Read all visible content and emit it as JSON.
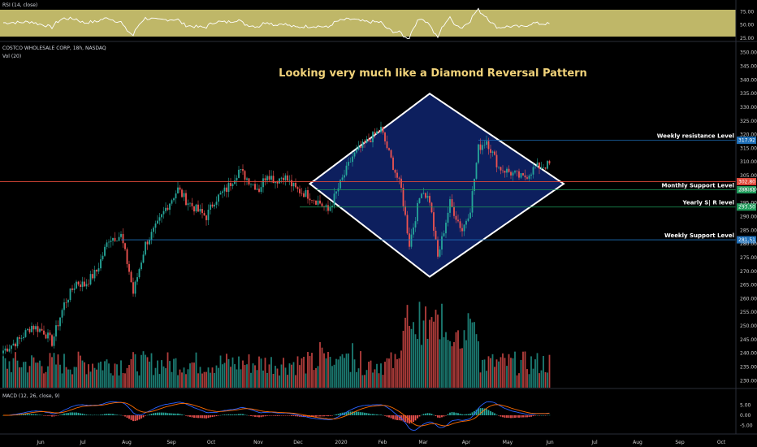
{
  "chart_data": {
    "type": "candlestick",
    "symbol": "COSTCO WHOLESALE CORP, 18h, NASDAQ",
    "annotation_title": "Looking very much like a Diamond Reversal Pattern",
    "x_labels": [
      "Jun",
      "Jul",
      "Aug",
      "Sep",
      "Oct",
      "Nov",
      "Dec",
      "2020",
      "Feb",
      "Mar",
      "Apr",
      "May",
      "Jun",
      "Jul",
      "Aug",
      "Sep",
      "Oct"
    ],
    "price_axis": {
      "ticks": [
        230,
        235,
        240,
        245,
        250,
        255,
        260,
        265,
        270,
        275,
        280,
        285,
        290,
        295,
        300,
        305,
        310,
        315,
        320,
        325,
        330,
        335,
        340,
        345,
        350
      ],
      "tick_labels": [
        "230.00",
        "235.00",
        "240.00",
        "245.00",
        "250.00",
        "255.00",
        "260.00",
        "265.00",
        "270.00",
        "275.00",
        "280.00",
        "285.00",
        "290.00",
        "295.00",
        "300.00",
        "305.00",
        "310.00",
        "315.00",
        "320.00",
        "325.00",
        "330.00",
        "335.00",
        "340.00",
        "345.00",
        "350.00"
      ],
      "range": [
        228,
        352
      ]
    },
    "price_markers": [
      {
        "label": "Weekly resistance Level",
        "value": 317.92,
        "tag": "317.92",
        "color": "#1e6fb8"
      },
      {
        "label": "",
        "value": 302.8,
        "tag": "302.80",
        "color": "#e0483a"
      },
      {
        "label": "Monthly Support Level",
        "value": 299.81,
        "tag": "299.81",
        "color": "#1e9b5a"
      },
      {
        "label": "Yearly  S| R level",
        "value": 293.5,
        "tag": "293.50",
        "color": "#1e9b5a"
      },
      {
        "label": "Weekly Support Level",
        "value": 281.51,
        "tag": "281.51",
        "color": "#1e6fb8"
      }
    ],
    "diamond": {
      "left_date_index": 151,
      "right_date_index": 276,
      "top_value": 335,
      "bottom_value": 268,
      "apex_x_index": 210,
      "center_value": 302
    },
    "candles_seed": {
      "start": 241,
      "count": 270,
      "path": [
        [
          0,
          241
        ],
        [
          8,
          245
        ],
        [
          14,
          250
        ],
        [
          20,
          248
        ],
        [
          24,
          244
        ],
        [
          30,
          258
        ],
        [
          36,
          266
        ],
        [
          40,
          265
        ],
        [
          46,
          270
        ],
        [
          52,
          282
        ],
        [
          58,
          283
        ],
        [
          62,
          270
        ],
        [
          64,
          262
        ],
        [
          70,
          280
        ],
        [
          76,
          287
        ],
        [
          80,
          293
        ],
        [
          86,
          300
        ],
        [
          90,
          296
        ],
        [
          96,
          292
        ],
        [
          100,
          290
        ],
        [
          104,
          296
        ],
        [
          110,
          300
        ],
        [
          116,
          307
        ],
        [
          120,
          304
        ],
        [
          126,
          300
        ],
        [
          130,
          306
        ],
        [
          134,
          303
        ],
        [
          138,
          305
        ],
        [
          144,
          300
        ],
        [
          150,
          298
        ],
        [
          156,
          295
        ],
        [
          160,
          292
        ],
        [
          166,
          302
        ],
        [
          172,
          312
        ],
        [
          180,
          318
        ],
        [
          186,
          322
        ],
        [
          190,
          313
        ],
        [
          196,
          300
        ],
        [
          200,
          280
        ],
        [
          206,
          300
        ],
        [
          210,
          296
        ],
        [
          214,
          275
        ],
        [
          220,
          295
        ],
        [
          226,
          285
        ],
        [
          230,
          293
        ],
        [
          234,
          315
        ],
        [
          238,
          318
        ],
        [
          244,
          308
        ],
        [
          250,
          306
        ],
        [
          256,
          304
        ],
        [
          262,
          308
        ],
        [
          269,
          309
        ]
      ]
    },
    "rsi": {
      "label": "RSI (14, close)",
      "ticks": [
        "75.00",
        "50.00",
        "25.00"
      ],
      "range": [
        20,
        85
      ]
    },
    "macd": {
      "label": "MACD (12, 26, close, 9)",
      "ticks": [
        "5.00",
        "0.00",
        "-5.00"
      ],
      "range": [
        -8,
        8
      ]
    },
    "volume": {
      "label": "Vol (20)"
    },
    "colors": {
      "up": "#26a69a",
      "down": "#ef5350",
      "diamond_fill": "#0d1f5e",
      "diamond_stroke": "#ffffff",
      "rsi_band": "#e0d77a",
      "macd_line": "#2962ff",
      "signal_line": "#ff6d00"
    }
  }
}
